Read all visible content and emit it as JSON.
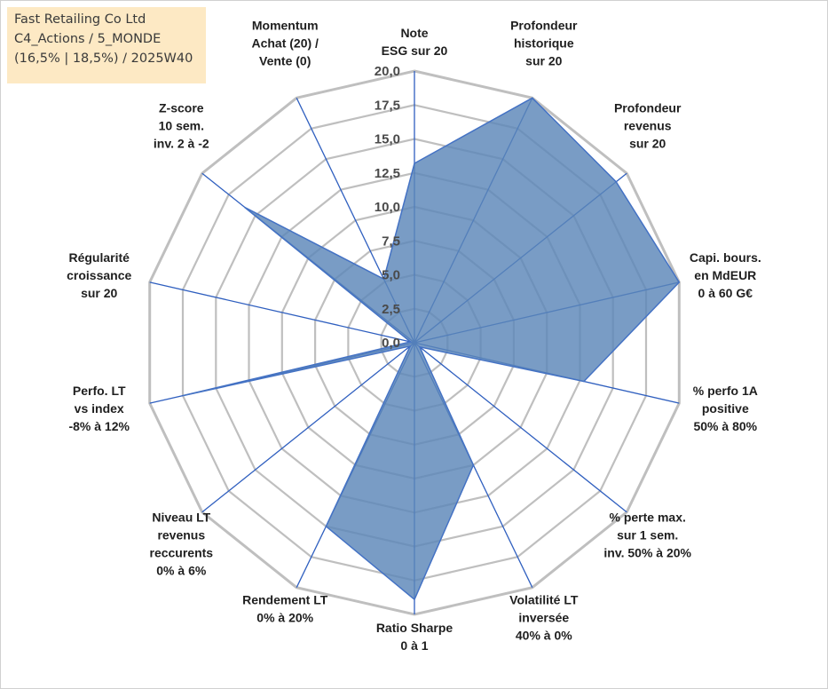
{
  "info_box": {
    "line1": "Fast Retailing Co Ltd",
    "line2": "C4_Actions / 5_MONDE",
    "line3": "(16,5% | 18,5%) / 2025W40"
  },
  "colors": {
    "fill": "#5b86b8",
    "stroke": "#4472c4",
    "spokes": "#2f5fbf",
    "grid": "#bfbfbf",
    "info_bg": "#fde9c4"
  },
  "chart_data": {
    "type": "radar",
    "title": "",
    "rmin": 0,
    "rmax": 20,
    "ticks": [
      "0,0",
      "2,5",
      "5,0",
      "7,5",
      "10,0",
      "12,5",
      "15,0",
      "17,5",
      "20,0"
    ],
    "categories": [
      [
        "Note",
        "ESG sur 20"
      ],
      [
        "Profondeur",
        "historique",
        "sur 20"
      ],
      [
        "Profondeur",
        "revenus",
        "sur 20"
      ],
      [
        "Capi. bours.",
        "en MdEUR",
        "0 à 60 G€"
      ],
      [
        "% perfo 1A",
        "positive",
        "50% à 80%"
      ],
      [
        "% perte max.",
        "sur 1 sem.",
        "inv. 50% à 20%"
      ],
      [
        "Volatilité LT",
        "inversée",
        "40% à 0%"
      ],
      [
        "Ratio Sharpe",
        "0 à 1"
      ],
      [
        "Rendement LT",
        "0% à 20%"
      ],
      [
        "Niveau LT",
        "revenus",
        "reccurents",
        "0% à 6%"
      ],
      [
        "Perfo. LT",
        "vs index",
        "-8% à 12%"
      ],
      [
        "Régularité",
        "croissance",
        "sur 20"
      ],
      [
        "Z-score",
        "10 sem.",
        "inv. 2 à -2"
      ],
      [
        "Momentum",
        "Achat (20) /",
        "Vente (0)"
      ]
    ],
    "values": [
      13.2,
      20.0,
      19.0,
      20.0,
      12.8,
      0.5,
      10.0,
      18.9,
      15.0,
      0.4,
      17.5,
      0.3,
      16.0,
      5.2
    ]
  }
}
